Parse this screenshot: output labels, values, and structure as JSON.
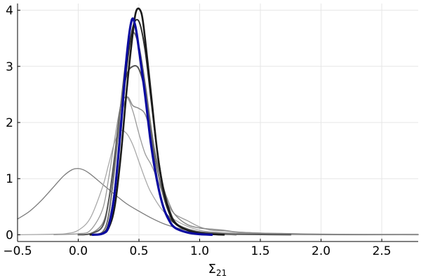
{
  "chart_data": {
    "type": "line",
    "title": "",
    "xlabel_main": "Σ",
    "xlabel_sub": "21",
    "ylabel": "",
    "xlim": [
      -0.5,
      2.8
    ],
    "ylim": [
      -0.12,
      4.12
    ],
    "grid": true,
    "legend": "none",
    "x_ticks": [
      -0.5,
      0.0,
      0.5,
      1.0,
      1.5,
      2.0,
      2.5
    ],
    "x_tick_labels": [
      "−0.5",
      "0.0",
      "0.5",
      "1.0",
      "1.5",
      "2.0",
      "2.5"
    ],
    "y_ticks": [
      0,
      1,
      2,
      3,
      4
    ],
    "y_tick_labels": [
      "0",
      "1",
      "2",
      "3",
      "4"
    ],
    "series": [
      {
        "color": "#7a7a7a",
        "width": 1.3,
        "points": [
          [
            -0.5,
            0.28
          ],
          [
            -0.4,
            0.42
          ],
          [
            -0.3,
            0.62
          ],
          [
            -0.2,
            0.86
          ],
          [
            -0.12,
            1.05
          ],
          [
            -0.05,
            1.16
          ],
          [
            0.0,
            1.18
          ],
          [
            0.05,
            1.15
          ],
          [
            0.1,
            1.08
          ],
          [
            0.2,
            0.9
          ],
          [
            0.3,
            0.72
          ],
          [
            0.4,
            0.55
          ],
          [
            0.5,
            0.42
          ],
          [
            0.6,
            0.3
          ],
          [
            0.7,
            0.2
          ],
          [
            0.8,
            0.13
          ],
          [
            0.9,
            0.08
          ],
          [
            1.0,
            0.05
          ],
          [
            1.2,
            0.02
          ],
          [
            1.5,
            0.01
          ],
          [
            2.0,
            0.0
          ],
          [
            2.8,
            0.0
          ]
        ]
      },
      {
        "color": "#a8a8a8",
        "width": 1.3,
        "points": [
          [
            -0.5,
            0.0
          ],
          [
            -0.2,
            0.01
          ],
          [
            -0.1,
            0.02
          ],
          [
            0.0,
            0.08
          ],
          [
            0.1,
            0.3
          ],
          [
            0.2,
            0.85
          ],
          [
            0.25,
            1.25
          ],
          [
            0.3,
            1.65
          ],
          [
            0.35,
            1.85
          ],
          [
            0.4,
            1.8
          ],
          [
            0.45,
            1.6
          ],
          [
            0.5,
            1.3
          ],
          [
            0.55,
            1.0
          ],
          [
            0.6,
            0.75
          ],
          [
            0.7,
            0.42
          ],
          [
            0.8,
            0.26
          ],
          [
            0.9,
            0.15
          ],
          [
            1.0,
            0.08
          ],
          [
            1.1,
            0.05
          ],
          [
            1.3,
            0.03
          ],
          [
            1.5,
            0.02
          ],
          [
            2.0,
            0.01
          ],
          [
            2.8,
            0.01
          ]
        ]
      },
      {
        "color": "#999999",
        "width": 1.3,
        "points": [
          [
            -0.2,
            0.0
          ],
          [
            0.0,
            0.02
          ],
          [
            0.1,
            0.08
          ],
          [
            0.2,
            0.45
          ],
          [
            0.25,
            1.0
          ],
          [
            0.3,
            1.7
          ],
          [
            0.35,
            2.3
          ],
          [
            0.4,
            2.45
          ],
          [
            0.45,
            2.2
          ],
          [
            0.5,
            1.8
          ],
          [
            0.55,
            1.45
          ],
          [
            0.6,
            1.25
          ],
          [
            0.65,
            1.0
          ],
          [
            0.7,
            0.72
          ],
          [
            0.75,
            0.5
          ],
          [
            0.8,
            0.36
          ],
          [
            0.9,
            0.25
          ],
          [
            1.0,
            0.14
          ],
          [
            1.1,
            0.08
          ],
          [
            1.2,
            0.07
          ],
          [
            1.3,
            0.05
          ],
          [
            1.5,
            0.03
          ],
          [
            2.0,
            0.01
          ],
          [
            2.8,
            0.0
          ]
        ]
      },
      {
        "color": "#888888",
        "width": 1.5,
        "points": [
          [
            0.0,
            0.0
          ],
          [
            0.1,
            0.02
          ],
          [
            0.2,
            0.2
          ],
          [
            0.25,
            0.6
          ],
          [
            0.3,
            1.3
          ],
          [
            0.35,
            2.05
          ],
          [
            0.4,
            2.45
          ],
          [
            0.45,
            2.3
          ],
          [
            0.5,
            2.25
          ],
          [
            0.55,
            2.15
          ],
          [
            0.6,
            1.8
          ],
          [
            0.65,
            1.3
          ],
          [
            0.7,
            0.85
          ],
          [
            0.75,
            0.55
          ],
          [
            0.8,
            0.35
          ],
          [
            0.9,
            0.18
          ],
          [
            1.0,
            0.12
          ],
          [
            1.1,
            0.1
          ],
          [
            1.2,
            0.08
          ],
          [
            1.3,
            0.05
          ],
          [
            1.5,
            0.03
          ],
          [
            1.75,
            0.02
          ],
          [
            2.0,
            0.01
          ],
          [
            2.8,
            0.0
          ]
        ]
      },
      {
        "color": "#555555",
        "width": 2.0,
        "points": [
          [
            0.0,
            0.0
          ],
          [
            0.1,
            0.02
          ],
          [
            0.2,
            0.15
          ],
          [
            0.25,
            0.6
          ],
          [
            0.3,
            1.4
          ],
          [
            0.35,
            2.3
          ],
          [
            0.4,
            2.85
          ],
          [
            0.45,
            3.0
          ],
          [
            0.5,
            2.95
          ],
          [
            0.55,
            2.55
          ],
          [
            0.6,
            1.8
          ],
          [
            0.65,
            1.0
          ],
          [
            0.7,
            0.5
          ],
          [
            0.75,
            0.3
          ],
          [
            0.8,
            0.2
          ],
          [
            0.9,
            0.1
          ],
          [
            1.0,
            0.05
          ],
          [
            1.1,
            0.03
          ],
          [
            1.3,
            0.01
          ],
          [
            1.75,
            0.0
          ]
        ]
      },
      {
        "color": "#6e6e6e",
        "width": 2.0,
        "points": [
          [
            0.1,
            0.0
          ],
          [
            0.2,
            0.05
          ],
          [
            0.25,
            0.35
          ],
          [
            0.3,
            1.2
          ],
          [
            0.35,
            2.3
          ],
          [
            0.4,
            3.2
          ],
          [
            0.45,
            3.6
          ],
          [
            0.5,
            3.35
          ],
          [
            0.55,
            2.7
          ],
          [
            0.6,
            1.9
          ],
          [
            0.65,
            1.2
          ],
          [
            0.7,
            0.7
          ],
          [
            0.75,
            0.38
          ],
          [
            0.8,
            0.2
          ],
          [
            0.9,
            0.08
          ],
          [
            1.0,
            0.04
          ],
          [
            1.1,
            0.02
          ],
          [
            1.3,
            0.0
          ]
        ]
      },
      {
        "color": "#2b2b2b",
        "width": 2.0,
        "points": [
          [
            0.1,
            0.0
          ],
          [
            0.2,
            0.03
          ],
          [
            0.25,
            0.2
          ],
          [
            0.3,
            0.8
          ],
          [
            0.35,
            1.9
          ],
          [
            0.4,
            3.0
          ],
          [
            0.45,
            3.7
          ],
          [
            0.5,
            3.8
          ],
          [
            0.55,
            3.3
          ],
          [
            0.6,
            2.4
          ],
          [
            0.65,
            1.5
          ],
          [
            0.7,
            0.85
          ],
          [
            0.75,
            0.45
          ],
          [
            0.8,
            0.22
          ],
          [
            0.9,
            0.08
          ],
          [
            1.0,
            0.03
          ],
          [
            1.1,
            0.01
          ],
          [
            1.2,
            0.0
          ]
        ]
      },
      {
        "color": "#1a1a1a",
        "width": 2.6,
        "points": [
          [
            0.1,
            0.0
          ],
          [
            0.2,
            0.02
          ],
          [
            0.25,
            0.12
          ],
          [
            0.3,
            0.5
          ],
          [
            0.35,
            1.4
          ],
          [
            0.4,
            2.6
          ],
          [
            0.45,
            3.6
          ],
          [
            0.48,
            4.0
          ],
          [
            0.52,
            3.95
          ],
          [
            0.55,
            3.5
          ],
          [
            0.6,
            2.5
          ],
          [
            0.65,
            1.5
          ],
          [
            0.7,
            0.8
          ],
          [
            0.75,
            0.4
          ],
          [
            0.8,
            0.2
          ],
          [
            0.9,
            0.08
          ],
          [
            1.0,
            0.03
          ],
          [
            1.1,
            0.01
          ],
          [
            1.2,
            0.0
          ]
        ]
      },
      {
        "color": "#0a0aa0",
        "width": 3.2,
        "points": [
          [
            0.12,
            0.0
          ],
          [
            0.2,
            0.02
          ],
          [
            0.25,
            0.15
          ],
          [
            0.3,
            0.75
          ],
          [
            0.35,
            1.9
          ],
          [
            0.4,
            3.2
          ],
          [
            0.44,
            3.82
          ],
          [
            0.47,
            3.72
          ],
          [
            0.5,
            3.3
          ],
          [
            0.55,
            2.5
          ],
          [
            0.6,
            1.6
          ],
          [
            0.65,
            0.95
          ],
          [
            0.7,
            0.5
          ],
          [
            0.75,
            0.25
          ],
          [
            0.8,
            0.12
          ],
          [
            0.9,
            0.04
          ],
          [
            1.0,
            0.01
          ],
          [
            1.1,
            0.0
          ]
        ]
      }
    ]
  }
}
